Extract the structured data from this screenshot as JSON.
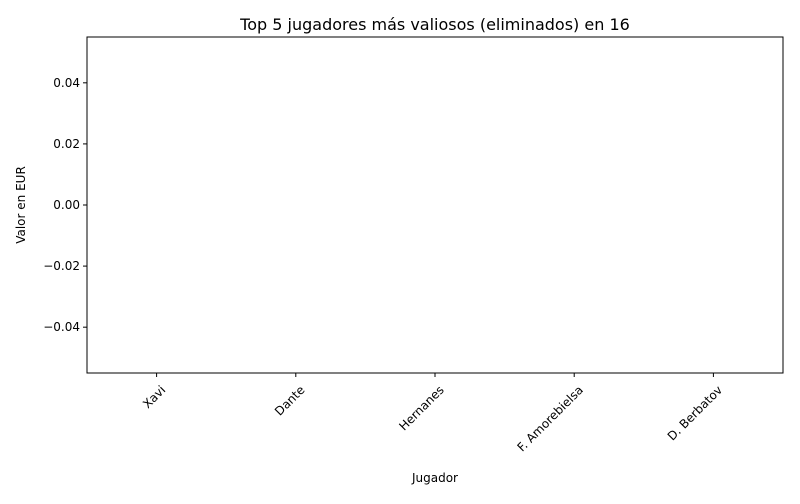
{
  "chart_data": {
    "type": "bar",
    "title": "Top 5 jugadores más valiosos (eliminados) en 16",
    "xlabel": "Jugador",
    "ylabel": "Valor en EUR",
    "categories": [
      "Xavi",
      "Dante",
      "Hernanes",
      "F. Amorebielsa",
      "D. Berbatov"
    ],
    "values": [
      0,
      0,
      0,
      0,
      0
    ],
    "ylim": [
      -0.055,
      0.055
    ],
    "yticks": [
      -0.04,
      -0.02,
      0.0,
      0.02,
      0.04
    ],
    "ytick_labels": [
      "−0.04",
      "−0.02",
      "0.00",
      "0.02",
      "0.04"
    ],
    "grid": false,
    "legend": "none",
    "colors": {
      "bar": "#1f77b4",
      "axis": "#000000",
      "background": "#ffffff"
    }
  }
}
